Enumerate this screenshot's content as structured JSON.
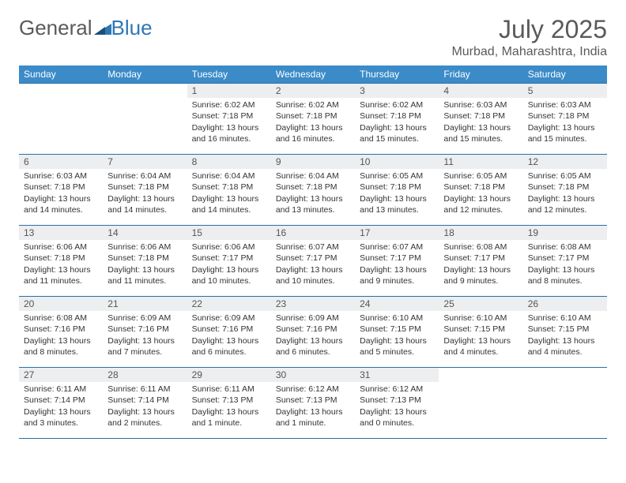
{
  "logo": {
    "text1": "General",
    "text2": "Blue",
    "color1": "#7a7a7a",
    "color2": "#2f77b5"
  },
  "title": "July 2025",
  "location": "Murbad, Maharashtra, India",
  "colors": {
    "header_bg": "#3b8bc9",
    "header_text": "#ffffff",
    "daynum_bg": "#eceeef",
    "border": "#2c6fa3"
  },
  "weekdays": [
    "Sunday",
    "Monday",
    "Tuesday",
    "Wednesday",
    "Thursday",
    "Friday",
    "Saturday"
  ],
  "weeks": [
    [
      null,
      null,
      {
        "n": "1",
        "sr": "6:02 AM",
        "ss": "7:18 PM",
        "dl": "13 hours and 16 minutes."
      },
      {
        "n": "2",
        "sr": "6:02 AM",
        "ss": "7:18 PM",
        "dl": "13 hours and 16 minutes."
      },
      {
        "n": "3",
        "sr": "6:02 AM",
        "ss": "7:18 PM",
        "dl": "13 hours and 15 minutes."
      },
      {
        "n": "4",
        "sr": "6:03 AM",
        "ss": "7:18 PM",
        "dl": "13 hours and 15 minutes."
      },
      {
        "n": "5",
        "sr": "6:03 AM",
        "ss": "7:18 PM",
        "dl": "13 hours and 15 minutes."
      }
    ],
    [
      {
        "n": "6",
        "sr": "6:03 AM",
        "ss": "7:18 PM",
        "dl": "13 hours and 14 minutes."
      },
      {
        "n": "7",
        "sr": "6:04 AM",
        "ss": "7:18 PM",
        "dl": "13 hours and 14 minutes."
      },
      {
        "n": "8",
        "sr": "6:04 AM",
        "ss": "7:18 PM",
        "dl": "13 hours and 14 minutes."
      },
      {
        "n": "9",
        "sr": "6:04 AM",
        "ss": "7:18 PM",
        "dl": "13 hours and 13 minutes."
      },
      {
        "n": "10",
        "sr": "6:05 AM",
        "ss": "7:18 PM",
        "dl": "13 hours and 13 minutes."
      },
      {
        "n": "11",
        "sr": "6:05 AM",
        "ss": "7:18 PM",
        "dl": "13 hours and 12 minutes."
      },
      {
        "n": "12",
        "sr": "6:05 AM",
        "ss": "7:18 PM",
        "dl": "13 hours and 12 minutes."
      }
    ],
    [
      {
        "n": "13",
        "sr": "6:06 AM",
        "ss": "7:18 PM",
        "dl": "13 hours and 11 minutes."
      },
      {
        "n": "14",
        "sr": "6:06 AM",
        "ss": "7:18 PM",
        "dl": "13 hours and 11 minutes."
      },
      {
        "n": "15",
        "sr": "6:06 AM",
        "ss": "7:17 PM",
        "dl": "13 hours and 10 minutes."
      },
      {
        "n": "16",
        "sr": "6:07 AM",
        "ss": "7:17 PM",
        "dl": "13 hours and 10 minutes."
      },
      {
        "n": "17",
        "sr": "6:07 AM",
        "ss": "7:17 PM",
        "dl": "13 hours and 9 minutes."
      },
      {
        "n": "18",
        "sr": "6:08 AM",
        "ss": "7:17 PM",
        "dl": "13 hours and 9 minutes."
      },
      {
        "n": "19",
        "sr": "6:08 AM",
        "ss": "7:17 PM",
        "dl": "13 hours and 8 minutes."
      }
    ],
    [
      {
        "n": "20",
        "sr": "6:08 AM",
        "ss": "7:16 PM",
        "dl": "13 hours and 8 minutes."
      },
      {
        "n": "21",
        "sr": "6:09 AM",
        "ss": "7:16 PM",
        "dl": "13 hours and 7 minutes."
      },
      {
        "n": "22",
        "sr": "6:09 AM",
        "ss": "7:16 PM",
        "dl": "13 hours and 6 minutes."
      },
      {
        "n": "23",
        "sr": "6:09 AM",
        "ss": "7:16 PM",
        "dl": "13 hours and 6 minutes."
      },
      {
        "n": "24",
        "sr": "6:10 AM",
        "ss": "7:15 PM",
        "dl": "13 hours and 5 minutes."
      },
      {
        "n": "25",
        "sr": "6:10 AM",
        "ss": "7:15 PM",
        "dl": "13 hours and 4 minutes."
      },
      {
        "n": "26",
        "sr": "6:10 AM",
        "ss": "7:15 PM",
        "dl": "13 hours and 4 minutes."
      }
    ],
    [
      {
        "n": "27",
        "sr": "6:11 AM",
        "ss": "7:14 PM",
        "dl": "13 hours and 3 minutes."
      },
      {
        "n": "28",
        "sr": "6:11 AM",
        "ss": "7:14 PM",
        "dl": "13 hours and 2 minutes."
      },
      {
        "n": "29",
        "sr": "6:11 AM",
        "ss": "7:13 PM",
        "dl": "13 hours and 1 minute."
      },
      {
        "n": "30",
        "sr": "6:12 AM",
        "ss": "7:13 PM",
        "dl": "13 hours and 1 minute."
      },
      {
        "n": "31",
        "sr": "6:12 AM",
        "ss": "7:13 PM",
        "dl": "13 hours and 0 minutes."
      },
      null,
      null
    ]
  ],
  "labels": {
    "sunrise": "Sunrise:",
    "sunset": "Sunset:",
    "daylight": "Daylight:"
  }
}
